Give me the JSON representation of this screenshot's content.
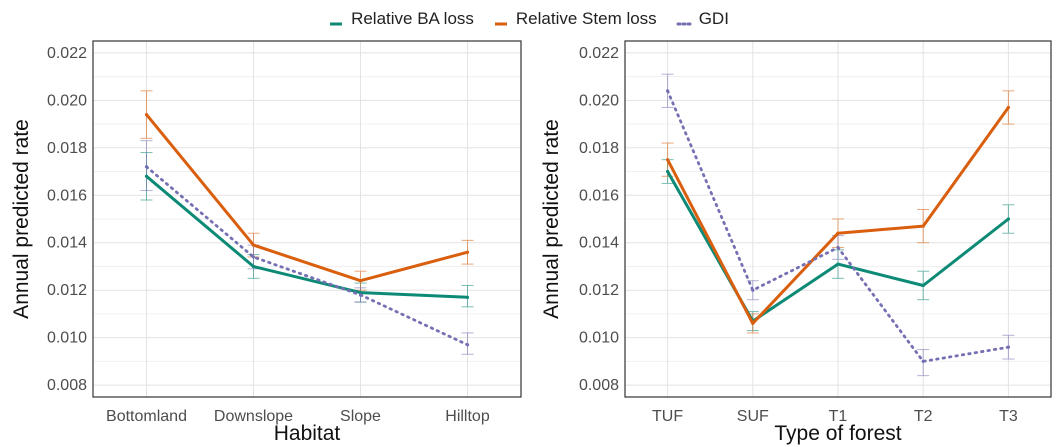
{
  "legend": {
    "items": [
      {
        "label": "Relative BA loss",
        "color": "#0d8a76",
        "dash": "solid"
      },
      {
        "label": "Relative Stem loss",
        "color": "#d95f0e",
        "dash": "solid"
      },
      {
        "label": "GDI",
        "color": "#7570b3",
        "dash": "dotted"
      }
    ],
    "position": "top"
  },
  "chart_data": [
    {
      "type": "line",
      "xlabel": "Habitat",
      "ylabel": "Annual predicted rate",
      "categories": [
        "Bottomland",
        "Downslope",
        "Slope",
        "Hilltop"
      ],
      "ylim": [
        0.0075,
        0.0225
      ],
      "yticks": [
        "0.008",
        "0.010",
        "0.012",
        "0.014",
        "0.016",
        "0.018",
        "0.020",
        "0.022"
      ],
      "grid": true,
      "series": [
        {
          "name": "Relative BA loss",
          "values": [
            0.0168,
            0.013,
            0.0119,
            0.0117
          ],
          "lower": [
            0.0158,
            0.0125,
            0.0115,
            0.0113
          ],
          "upper": [
            0.0178,
            0.0135,
            0.0123,
            0.0122
          ]
        },
        {
          "name": "Relative Stem loss",
          "values": [
            0.0194,
            0.0139,
            0.0124,
            0.0136
          ],
          "lower": [
            0.0184,
            0.0134,
            0.012,
            0.0131
          ],
          "upper": [
            0.0204,
            0.0144,
            0.0128,
            0.0141
          ]
        },
        {
          "name": "GDI",
          "values": [
            0.0172,
            0.0134,
            0.0118,
            0.0097
          ],
          "lower": [
            0.0162,
            0.0129,
            0.0115,
            0.0093
          ],
          "upper": [
            0.0183,
            0.0139,
            0.0121,
            0.0102
          ]
        }
      ]
    },
    {
      "type": "line",
      "xlabel": "Type of forest",
      "ylabel": "Annual predicted rate",
      "categories": [
        "TUF",
        "SUF",
        "T1",
        "T2",
        "T3"
      ],
      "ylim": [
        0.0075,
        0.0225
      ],
      "yticks": [
        "0.008",
        "0.010",
        "0.012",
        "0.014",
        "0.016",
        "0.018",
        "0.020",
        "0.022"
      ],
      "grid": true,
      "series": [
        {
          "name": "Relative BA loss",
          "values": [
            0.017,
            0.0107,
            0.0131,
            0.0122,
            0.015
          ],
          "lower": [
            0.0165,
            0.0103,
            0.0125,
            0.0116,
            0.0144
          ],
          "upper": [
            0.0175,
            0.0111,
            0.0137,
            0.0128,
            0.0156
          ]
        },
        {
          "name": "Relative Stem loss",
          "values": [
            0.0175,
            0.0106,
            0.0144,
            0.0147,
            0.0197
          ],
          "lower": [
            0.0168,
            0.0102,
            0.0138,
            0.014,
            0.019
          ],
          "upper": [
            0.0182,
            0.011,
            0.015,
            0.0154,
            0.0204
          ]
        },
        {
          "name": "GDI",
          "values": [
            0.0204,
            0.012,
            0.0138,
            0.009,
            0.0096
          ],
          "lower": [
            0.0197,
            0.0116,
            0.0133,
            0.0084,
            0.0091
          ],
          "upper": [
            0.0211,
            0.0124,
            0.0143,
            0.0095,
            0.0101
          ]
        }
      ]
    }
  ]
}
